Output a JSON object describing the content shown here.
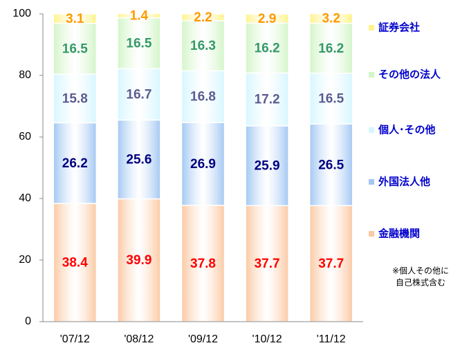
{
  "chart_data": {
    "type": "stacked_bar",
    "categories": [
      "'07/12",
      "'08/12",
      "'09/12",
      "'10/12",
      "'11/12"
    ],
    "series": [
      {
        "name": "金融機関",
        "color": "#fbc9a3",
        "label_color": "#ff0000",
        "values": [
          38.4,
          39.9,
          37.8,
          37.7,
          37.7
        ]
      },
      {
        "name": "外国法人他",
        "color": "#a3c8f3",
        "label_color": "#000080",
        "values": [
          26.2,
          25.6,
          26.9,
          25.9,
          26.5
        ]
      },
      {
        "name": "個人･その他",
        "color": "#d6f6ff",
        "label_color": "#5b5b8f",
        "values": [
          15.8,
          16.7,
          16.8,
          17.2,
          16.5
        ]
      },
      {
        "name": "その他の法人",
        "color": "#d3f5c8",
        "label_color": "#339966",
        "values": [
          16.5,
          16.5,
          16.3,
          16.2,
          16.2
        ]
      },
      {
        "name": "証券会社",
        "color": "#fff38a",
        "label_color": "#ff9900",
        "values": [
          3.1,
          1.4,
          2.2,
          2.9,
          3.2
        ]
      }
    ],
    "ylim": [
      0,
      100
    ],
    "yticks": [
      0,
      20,
      40,
      60,
      80,
      100
    ],
    "annotation": [
      "※個人その他に",
      "自己株式含む"
    ]
  }
}
